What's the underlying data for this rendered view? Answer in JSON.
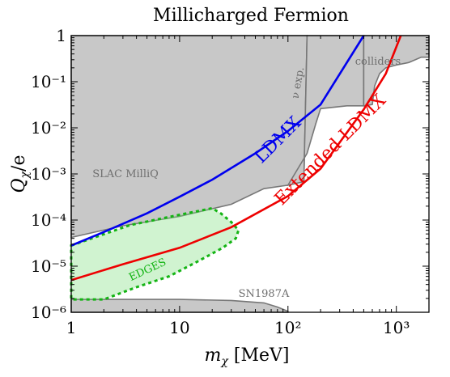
{
  "chart_data": {
    "type": "line",
    "title": "Millicharged Fermion",
    "xlabel": "m_χ [MeV]",
    "ylabel": "Q_χ/e",
    "xscale": "log",
    "yscale": "log",
    "xlim": [
      1,
      2000
    ],
    "ylim": [
      1e-06,
      1
    ],
    "grid": false,
    "x_ticks": [
      {
        "v": 1,
        "label": "1"
      },
      {
        "v": 10,
        "label": "10"
      },
      {
        "v": 100,
        "label": "10²"
      },
      {
        "v": 1000,
        "label": "10³"
      }
    ],
    "y_ticks": [
      {
        "v": 1,
        "label": "1"
      },
      {
        "v": 0.1,
        "label": "10⁻¹"
      },
      {
        "v": 0.01,
        "label": "10⁻²"
      },
      {
        "v": 0.001,
        "label": "10⁻³"
      },
      {
        "v": 0.0001,
        "label": "10⁻⁴"
      },
      {
        "v": 1e-05,
        "label": "10⁻⁵"
      },
      {
        "v": 1e-06,
        "label": "10⁻⁶"
      }
    ],
    "series": [
      {
        "name": "LDMX",
        "color": "#0000ee",
        "points": [
          [
            1,
            2.8e-05
          ],
          [
            2,
            5.5e-05
          ],
          [
            5,
            0.00014
          ],
          [
            10,
            0.00032
          ],
          [
            20,
            0.00075
          ],
          [
            50,
            0.0028
          ],
          [
            100,
            0.0085
          ],
          [
            200,
            0.032
          ],
          [
            500,
            1.0
          ]
        ]
      },
      {
        "name": "Extended LDMX",
        "color": "#ee0000",
        "points": [
          [
            1,
            5e-06
          ],
          [
            3,
            1.1e-05
          ],
          [
            10,
            2.5e-05
          ],
          [
            30,
            7e-05
          ],
          [
            100,
            0.00033
          ],
          [
            200,
            0.0013
          ],
          [
            500,
            0.025
          ],
          [
            800,
            0.15
          ],
          [
            1100,
            1.0
          ]
        ]
      }
    ],
    "regions": [
      {
        "name": "SLAC MilliQ",
        "color": "#c8c8c8",
        "boundary": [
          [
            1,
            4.2e-05
          ],
          [
            3,
            7.5e-05
          ],
          [
            10,
            0.00012
          ],
          [
            30,
            0.00022
          ],
          [
            60,
            0.00048
          ],
          [
            100,
            0.00057
          ],
          [
            140,
            0.00068
          ],
          [
            150,
            1.0
          ]
        ]
      },
      {
        "name": "ν exp.",
        "color": "#c8c8c8",
        "boundary": [
          [
            100,
            0.00057
          ],
          [
            150,
            0.0028
          ],
          [
            180,
            0.012
          ],
          [
            200,
            0.026
          ],
          [
            350,
            0.03
          ],
          [
            500,
            0.03
          ]
        ]
      },
      {
        "name": "colliders",
        "color": "#c8c8c8",
        "boundary": [
          [
            500,
            0.03
          ],
          [
            600,
            0.032
          ],
          [
            630,
            0.08
          ],
          [
            700,
            0.15
          ],
          [
            800,
            0.2
          ],
          [
            1000,
            0.23
          ],
          [
            1300,
            0.26
          ],
          [
            1500,
            0.3
          ],
          [
            1700,
            0.34
          ],
          [
            2000,
            0.34
          ]
        ]
      },
      {
        "name": "SN1987A",
        "color": "#c8c8c8",
        "boundary": [
          [
            1,
            1.9e-06
          ],
          [
            10,
            1.9e-06
          ],
          [
            30,
            1.8e-06
          ],
          [
            60,
            1.6e-06
          ],
          [
            80,
            1.3e-06
          ],
          [
            100,
            1.05e-06
          ]
        ]
      },
      {
        "name": "EDGES",
        "color": "#90e090",
        "boundary": [
          [
            1,
            2.8e-05
          ],
          [
            3.5,
            7.8e-05
          ],
          [
            10,
            0.00013
          ],
          [
            20,
            0.00018
          ],
          [
            24,
            0.00014
          ],
          [
            30,
            9e-05
          ],
          [
            35,
            6e-05
          ],
          [
            33,
            4e-05
          ],
          [
            25,
            2.5e-05
          ],
          [
            15,
            1.3e-05
          ],
          [
            8,
            6e-06
          ],
          [
            4,
            3.5e-06
          ],
          [
            2,
            1.9e-06
          ],
          [
            1,
            1.9e-06
          ]
        ]
      }
    ]
  }
}
